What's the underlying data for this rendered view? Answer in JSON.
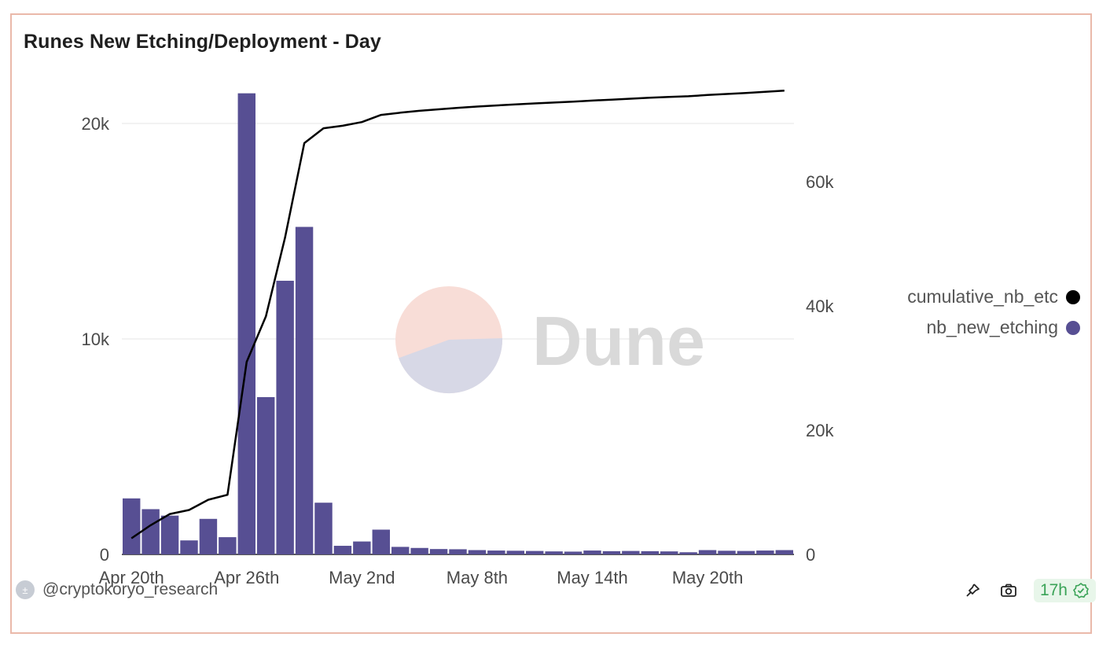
{
  "title": "Runes New Etching/Deployment - Day",
  "watermark": "Dune",
  "author": "@cryptokoryo_research",
  "updated_badge": "17h",
  "colors": {
    "bars": "#574f93",
    "line": "#000000",
    "border": "#eab9aa",
    "badge_text": "#3aa357"
  },
  "legend": [
    {
      "label": "cumulative_nb_etching",
      "display": "cumulative_nb_etc",
      "color": "#000000"
    },
    {
      "label": "nb_new_etching",
      "display": "nb_new_etching",
      "color": "#574f93"
    }
  ],
  "icons": {
    "footer": [
      "pin-icon",
      "camera-icon",
      "check-badge-icon"
    ]
  },
  "chart_data": {
    "type": "bar",
    "title": "Runes New Etching/Deployment - Day",
    "x": [
      "Apr 20th",
      "Apr 21st",
      "Apr 22nd",
      "Apr 23rd",
      "Apr 24th",
      "Apr 25th",
      "Apr 26th",
      "Apr 27th",
      "Apr 28th",
      "Apr 29th",
      "Apr 30th",
      "May 1st",
      "May 2nd",
      "May 3rd",
      "May 4th",
      "May 5th",
      "May 6th",
      "May 7th",
      "May 8th",
      "May 9th",
      "May 10th",
      "May 11th",
      "May 12th",
      "May 13th",
      "May 14th",
      "May 15th",
      "May 16th",
      "May 17th",
      "May 18th",
      "May 19th",
      "May 20th",
      "May 21st",
      "May 22nd",
      "May 23rd",
      "May 24th"
    ],
    "xticks": [
      "Apr 20th",
      "Apr 26th",
      "May 2nd",
      "May 8th",
      "May 14th",
      "May 20th"
    ],
    "y_left": {
      "ticks": [
        "0",
        "10k",
        "20k"
      ],
      "lim": [
        0,
        21500
      ]
    },
    "y_right": {
      "ticks": [
        "0",
        "20k",
        "40k",
        "60k"
      ],
      "lim": [
        0,
        75000
      ]
    },
    "series": [
      {
        "name": "nb_new_etching",
        "type": "bar",
        "axis": "left",
        "values": [
          2600,
          2100,
          1800,
          650,
          1650,
          800,
          21400,
          7300,
          12700,
          15200,
          2400,
          400,
          600,
          1150,
          350,
          300,
          250,
          240,
          200,
          180,
          170,
          160,
          140,
          130,
          180,
          150,
          160,
          150,
          140,
          100,
          200,
          170,
          160,
          180,
          200
        ]
      },
      {
        "name": "cumulative_nb_etching",
        "type": "line",
        "axis": "right",
        "values": [
          2600,
          4700,
          6500,
          7150,
          8800,
          9600,
          31000,
          38300,
          51000,
          66200,
          68600,
          69000,
          69600,
          70750,
          71100,
          71400,
          71650,
          71890,
          72090,
          72270,
          72440,
          72600,
          72740,
          72870,
          73050,
          73200,
          73360,
          73510,
          73650,
          73750,
          73950,
          74120,
          74280,
          74460,
          74660
        ]
      }
    ]
  }
}
